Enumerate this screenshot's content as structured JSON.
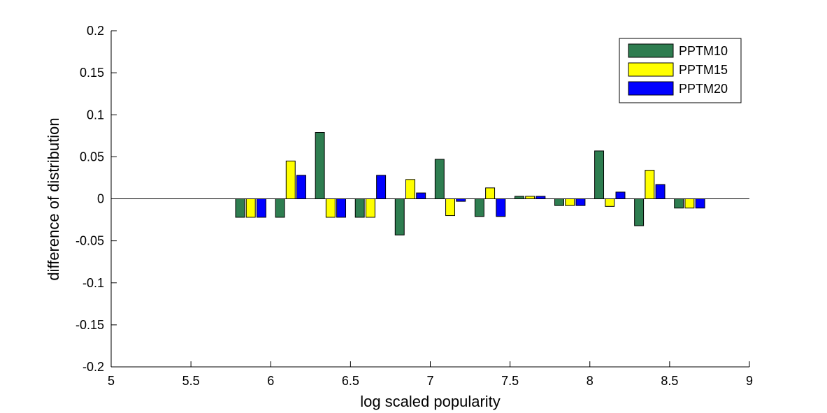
{
  "chart_data": {
    "type": "bar",
    "title": "",
    "xlabel": "log scaled popularity",
    "ylabel": "difference of distribution",
    "xlim": [
      5,
      9
    ],
    "ylim": [
      -0.2,
      0.2
    ],
    "x_ticks": [
      "5",
      "5.5",
      "6",
      "6.5",
      "7",
      "7.5",
      "8",
      "8.5",
      "9"
    ],
    "x_tick_values": [
      5,
      5.5,
      6,
      6.5,
      7,
      7.5,
      8,
      8.5,
      9
    ],
    "y_ticks": [
      "-0.2",
      "-0.15",
      "-0.1",
      "-0.05",
      "0",
      "0.05",
      "0.1",
      "0.15",
      "0.2"
    ],
    "y_tick_values": [
      -0.2,
      -0.15,
      -0.1,
      -0.05,
      0,
      0.05,
      0.1,
      0.15,
      0.2
    ],
    "x": [
      5.875,
      6.125,
      6.375,
      6.625,
      6.875,
      7.125,
      7.375,
      7.625,
      7.875,
      8.125,
      8.375,
      8.625
    ],
    "bar_group_width": 0.25,
    "grid": false,
    "legend_position": "top-right",
    "series": [
      {
        "name": "PPTM10",
        "color": "#2e7d50",
        "values": [
          -0.022,
          -0.022,
          0.079,
          -0.022,
          -0.043,
          0.047,
          -0.021,
          0.003,
          -0.008,
          0.057,
          -0.032,
          -0.011
        ]
      },
      {
        "name": "PPTM15",
        "color": "#ffff00",
        "values": [
          -0.022,
          0.045,
          -0.022,
          -0.022,
          0.023,
          -0.02,
          0.013,
          0.003,
          -0.008,
          -0.009,
          0.034,
          -0.011
        ]
      },
      {
        "name": "PPTM20",
        "color": "#0000ff",
        "values": [
          -0.022,
          0.028,
          -0.022,
          0.028,
          0.007,
          -0.003,
          -0.021,
          0.003,
          -0.008,
          0.008,
          0.017,
          -0.011
        ]
      }
    ]
  }
}
